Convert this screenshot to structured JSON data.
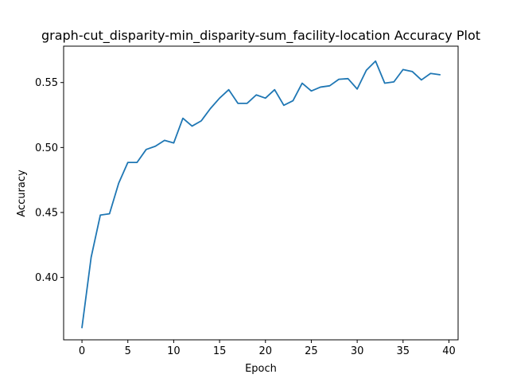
{
  "chart_data": {
    "type": "line",
    "title": "graph-cut_disparity-min_disparity-sum_facility-location Accuracy Plot",
    "xlabel": "Epoch",
    "ylabel": "Accuracy",
    "xlim": [
      -2,
      41
    ],
    "ylim": [
      0.352,
      0.578
    ],
    "xticks": [
      0,
      5,
      10,
      15,
      20,
      25,
      30,
      35,
      40
    ],
    "yticks": [
      0.4,
      0.45,
      0.5,
      0.55
    ],
    "xtick_labels": [
      "0",
      "5",
      "10",
      "15",
      "20",
      "25",
      "30",
      "35",
      "40"
    ],
    "ytick_labels": [
      "0.40",
      "0.45",
      "0.50",
      "0.55"
    ],
    "grid": false,
    "legend": "none",
    "series": [
      {
        "color": "#1f77b4",
        "x": [
          0,
          1,
          2,
          3,
          4,
          5,
          6,
          7,
          8,
          9,
          10,
          11,
          12,
          13,
          14,
          15,
          16,
          17,
          18,
          19,
          20,
          21,
          22,
          23,
          24,
          25,
          26,
          27,
          28,
          29,
          30,
          31,
          32,
          33,
          34,
          35,
          36,
          37,
          38,
          39
        ],
        "y": [
          0.3615,
          0.4155,
          0.448,
          0.449,
          0.4725,
          0.4885,
          0.4885,
          0.4985,
          0.501,
          0.5055,
          0.5035,
          0.5225,
          0.5165,
          0.5205,
          0.53,
          0.538,
          0.5445,
          0.534,
          0.534,
          0.5405,
          0.538,
          0.5445,
          0.5325,
          0.536,
          0.5495,
          0.5435,
          0.5465,
          0.5475,
          0.5525,
          0.553,
          0.545,
          0.5595,
          0.5665,
          0.5495,
          0.5505,
          0.56,
          0.5585,
          0.552,
          0.557,
          0.556
        ]
      }
    ]
  }
}
